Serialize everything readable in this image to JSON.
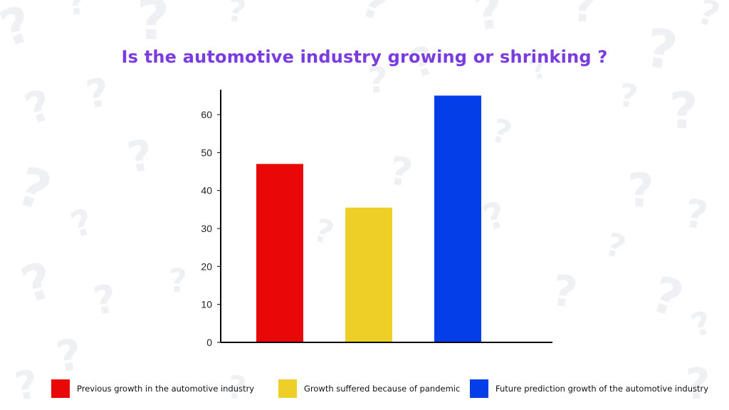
{
  "chart_data": {
    "type": "bar",
    "title": "Is the automotive industry growing or shrinking ?",
    "categories": [
      "Previous growth in the automotive industry",
      "Growth suffered because of pandemic",
      "Future prediction growth of the automotive industry"
    ],
    "values": [
      47,
      35.5,
      65
    ],
    "colors": [
      "#e80808",
      "#edcf27",
      "#033ee8"
    ],
    "yticks": [
      "0",
      "10",
      "20",
      "30",
      "40",
      "50",
      "60"
    ],
    "ylim": [
      0,
      66
    ],
    "xlabel": "",
    "ylabel": "",
    "grid": false,
    "legend_position": "bottom"
  },
  "background": {
    "pattern_glyph": "?",
    "pattern_color": "#eef0f3"
  }
}
